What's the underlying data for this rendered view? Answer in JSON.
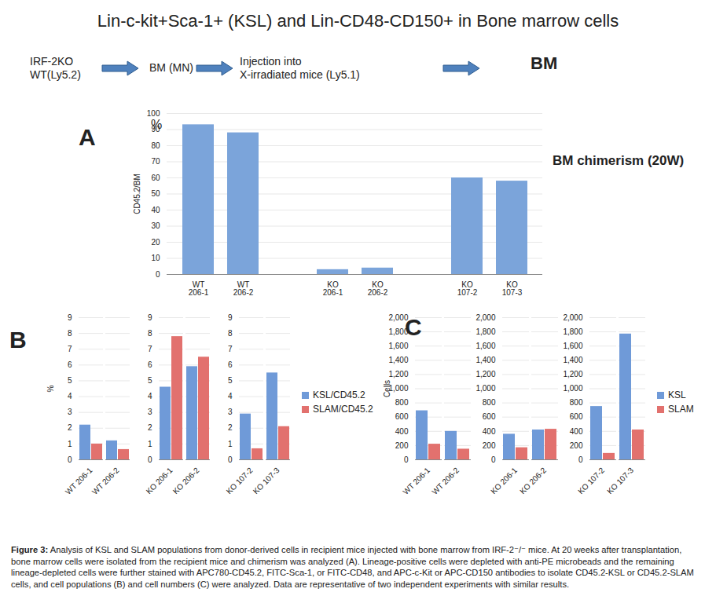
{
  "title": "Lin-c-kit+Sca-1+ (KSL) and Lin-CD48-CD150+ in Bone marrow cells",
  "flow": [
    "IRF-2KO\nWT(Ly5.2)",
    "BM (MN)",
    "Injection into\nX-irradiated mice (Ly5.1)",
    "BM"
  ],
  "chart_data": [
    {
      "type": "bar",
      "label": "A",
      "annotations": [
        "%",
        "BM chimerism (20W)"
      ],
      "y_label": "CD45.2/BM",
      "categories": [
        "WT\n206-1",
        "WT\n206-2",
        null,
        "KO\n206-1",
        "KO\n206-2",
        null,
        "KO\n107-2",
        "KO\n107-3"
      ],
      "values": [
        93,
        88,
        null,
        3,
        4,
        null,
        60,
        58
      ],
      "color": "#7ba4da",
      "ylim": [
        0,
        100
      ],
      "yticks": [
        0,
        10,
        20,
        30,
        40,
        50,
        60,
        70,
        80,
        90,
        100
      ],
      "grid": true
    },
    {
      "type": "bar",
      "label": "B",
      "y_label": "%",
      "categories": [
        "WT 206-1",
        "WT 206-2",
        null,
        "KO 206-1",
        "KO 206-2",
        null,
        "KO 107-2",
        "KO 107-3"
      ],
      "series": [
        {
          "name": "KSL/CD45.2",
          "color": "#6f9ad8",
          "values": [
            2.2,
            1.2,
            null,
            4.6,
            5.9,
            null,
            2.9,
            5.5
          ]
        },
        {
          "name": "SLAM/CD45.2",
          "color": "#e2716e",
          "values": [
            1.0,
            0.65,
            null,
            7.8,
            6.5,
            null,
            0.7,
            2.1
          ]
        }
      ],
      "ylim": [
        0,
        9
      ],
      "yticks": [
        0,
        1,
        2,
        3,
        4,
        5,
        6,
        7,
        8,
        9
      ],
      "grid": true,
      "legend": "right"
    },
    {
      "type": "bar",
      "label": "C",
      "y_label": "Cells",
      "categories": [
        "WT 206-1",
        "WT 206-2",
        null,
        "KO 206-1",
        "KO 206-2",
        null,
        "KO 107-2",
        "KO 107-3"
      ],
      "series": [
        {
          "name": "KSL",
          "color": "#6f9ad8",
          "values": [
            690,
            400,
            null,
            360,
            420,
            null,
            750,
            1770
          ]
        },
        {
          "name": "SLAM",
          "color": "#e2716e",
          "values": [
            220,
            150,
            null,
            170,
            430,
            null,
            90,
            420
          ]
        }
      ],
      "ylim": [
        0,
        2000
      ],
      "yticks": [
        0,
        200,
        400,
        600,
        800,
        1000,
        1200,
        1400,
        1600,
        1800,
        2000
      ],
      "grid": true,
      "legend": "right"
    }
  ],
  "caption_label": "Figure 3:",
  "caption": "Analysis of KSL and SLAM populations from donor-derived cells in recipient mice injected with bone marrow from IRF-2⁻/⁻ mice. At 20 weeks after transplantation, bone marrow cells were isolated from the recipient mice and chimerism was analyzed (A). Lineage-positive cells were depleted with anti-PE microbeads and the remaining lineage-depleted cells were further stained with APC780-CD45.2, FITC-Sca-1, or FITC-CD48, and APC-c-Kit or APC-CD150 antibodies to isolate CD45.2-KSL or CD45.2-SLAM cells, and cell populations (B) and cell numbers (C) were analyzed. Data are representative of two independent experiments with similar results."
}
